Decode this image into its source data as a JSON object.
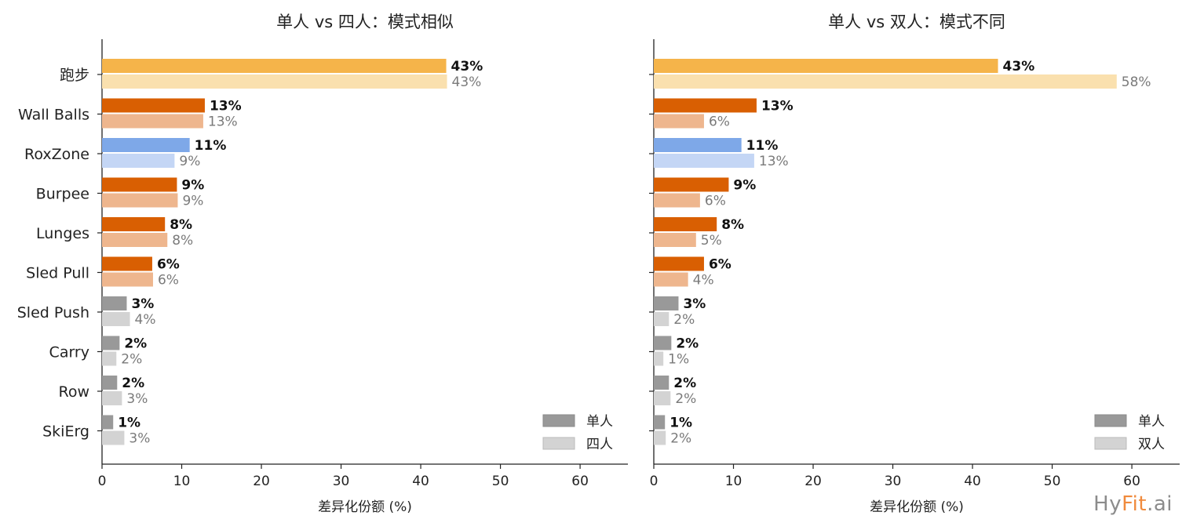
{
  "colors": {
    "running_a": "#f5b44a",
    "running_b": "#fae0ae",
    "station_a": "#d95f02",
    "station_b": "#eeb68e",
    "roxzone_a": "#7ea8e8",
    "roxzone_b": "#c4d6f5",
    "minor_a": "#999999",
    "minor_b": "#d3d3d3",
    "watermark_gray": "#8c8c8c",
    "watermark_orange": "#f08a3c"
  },
  "watermark": {
    "part1": "Hy",
    "part2": "Fit",
    "part3": ".ai"
  },
  "chart_data": [
    {
      "type": "bar",
      "orientation": "horizontal",
      "title": "单人 vs 四人：模式相似",
      "xlabel": "差异化份额 (%)",
      "xlim": [
        0,
        66
      ],
      "xticks": [
        0,
        10,
        20,
        30,
        40,
        50,
        60
      ],
      "grid": false,
      "legend_position": "bottom-right",
      "categories": [
        "跑步",
        "Wall Balls",
        "RoxZone",
        "Burpee",
        "Lunges",
        "Sled Pull",
        "Sled Push",
        "Carry",
        "Row",
        "SkiErg"
      ],
      "color_groups": [
        "running",
        "station",
        "roxzone",
        "station",
        "station",
        "station",
        "minor",
        "minor",
        "minor",
        "minor"
      ],
      "series": [
        {
          "name": "单人",
          "values": [
            43.2,
            12.9,
            11.0,
            9.4,
            7.9,
            6.3,
            3.1,
            2.2,
            1.9,
            1.4
          ],
          "labels": [
            "43%",
            "13%",
            "11%",
            "9%",
            "8%",
            "6%",
            "3%",
            "2%",
            "2%",
            "1%"
          ]
        },
        {
          "name": "四人",
          "values": [
            43.3,
            12.7,
            9.1,
            9.5,
            8.2,
            6.4,
            3.5,
            1.8,
            2.5,
            2.8
          ],
          "labels": [
            "43%",
            "13%",
            "9%",
            "9%",
            "8%",
            "6%",
            "4%",
            "2%",
            "3%",
            "3%"
          ]
        }
      ]
    },
    {
      "type": "bar",
      "orientation": "horizontal",
      "title": "单人 vs 双人：模式不同",
      "xlabel": "差异化份额 (%)",
      "xlim": [
        0,
        66
      ],
      "xticks": [
        0,
        10,
        20,
        30,
        40,
        50,
        60
      ],
      "grid": false,
      "legend_position": "bottom-right",
      "categories": [
        "跑步",
        "Wall Balls",
        "RoxZone",
        "Burpee",
        "Lunges",
        "Sled Pull",
        "Sled Push",
        "Carry",
        "Row",
        "SkiErg"
      ],
      "color_groups": [
        "running",
        "station",
        "roxzone",
        "station",
        "station",
        "station",
        "minor",
        "minor",
        "minor",
        "minor"
      ],
      "series": [
        {
          "name": "单人",
          "values": [
            43.2,
            12.9,
            11.0,
            9.4,
            7.9,
            6.3,
            3.1,
            2.2,
            1.9,
            1.4
          ],
          "labels": [
            "43%",
            "13%",
            "11%",
            "9%",
            "8%",
            "6%",
            "3%",
            "2%",
            "2%",
            "1%"
          ]
        },
        {
          "name": "双人",
          "values": [
            58.1,
            6.3,
            12.6,
            5.8,
            5.3,
            4.3,
            1.9,
            1.2,
            2.1,
            1.5
          ],
          "labels": [
            "58%",
            "6%",
            "13%",
            "6%",
            "5%",
            "4%",
            "2%",
            "1%",
            "2%",
            "2%"
          ]
        }
      ]
    }
  ]
}
